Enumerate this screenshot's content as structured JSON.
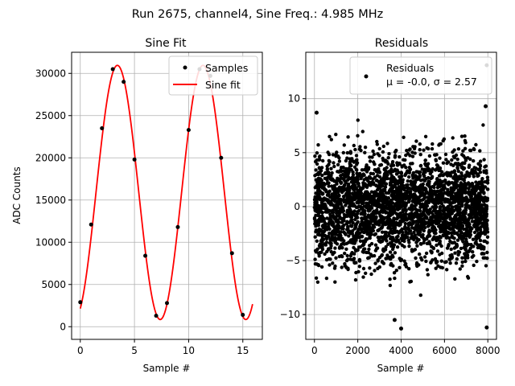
{
  "suptitle": "Run 2675, channel4, Sine Freq.: 4.985 MHz",
  "chart_data": [
    {
      "type": "line",
      "title": "Sine Fit",
      "xlabel": "Sample #",
      "ylabel": "ADC Counts",
      "xlim": [
        -0.8,
        16.8
      ],
      "ylim": [
        -1500,
        32500
      ],
      "xticks": [
        0,
        5,
        10,
        15
      ],
      "yticks": [
        0,
        5000,
        10000,
        15000,
        20000,
        25000,
        30000
      ],
      "grid": true,
      "legend": {
        "position": "top-right",
        "entries": [
          "Samples",
          "Sine fit"
        ]
      },
      "series": [
        {
          "name": "Samples",
          "kind": "scatter",
          "color": "#000000",
          "x": [
            0,
            1,
            2,
            3,
            4,
            5,
            6,
            7,
            8,
            9,
            10,
            11,
            12,
            13,
            14,
            15
          ],
          "y": [
            2900,
            12100,
            23500,
            30500,
            29000,
            19800,
            8400,
            1300,
            2800,
            11800,
            23300,
            30500,
            29700,
            20000,
            8700,
            1400
          ]
        },
        {
          "name": "Sine fit",
          "kind": "line",
          "color": "#ff0000",
          "model": {
            "offset": 15900,
            "amplitude": 15050,
            "period": 7.9,
            "phase_zero_crossing": 1.45
          },
          "x_range": [
            0,
            15.9
          ]
        }
      ]
    },
    {
      "type": "scatter",
      "title": "Residuals",
      "xlabel": "Sample #",
      "ylabel": "",
      "xlim": [
        -400,
        8400
      ],
      "ylim": [
        -12.3,
        14.3
      ],
      "xticks": [
        0,
        2000,
        4000,
        6000,
        8000
      ],
      "yticks": [
        -10,
        -5,
        0,
        5,
        10
      ],
      "grid": true,
      "legend": {
        "position": "top-right",
        "entries": [
          "Residuals"
        ],
        "stats_line": "μ = -0.0, σ = 2.57"
      },
      "series": [
        {
          "name": "Residuals",
          "color": "#000000",
          "count": 8000,
          "mean": 0.0,
          "std": 2.57,
          "notable_points": [
            {
              "x": 7950,
              "y": 13.1
            },
            {
              "x": 100,
              "y": 8.7
            },
            {
              "x": 4000,
              "y": -11.3
            },
            {
              "x": 3700,
              "y": -10.5
            },
            {
              "x": 7950,
              "y": -11.2
            },
            {
              "x": 7900,
              "y": 9.3
            }
          ]
        }
      ]
    }
  ]
}
